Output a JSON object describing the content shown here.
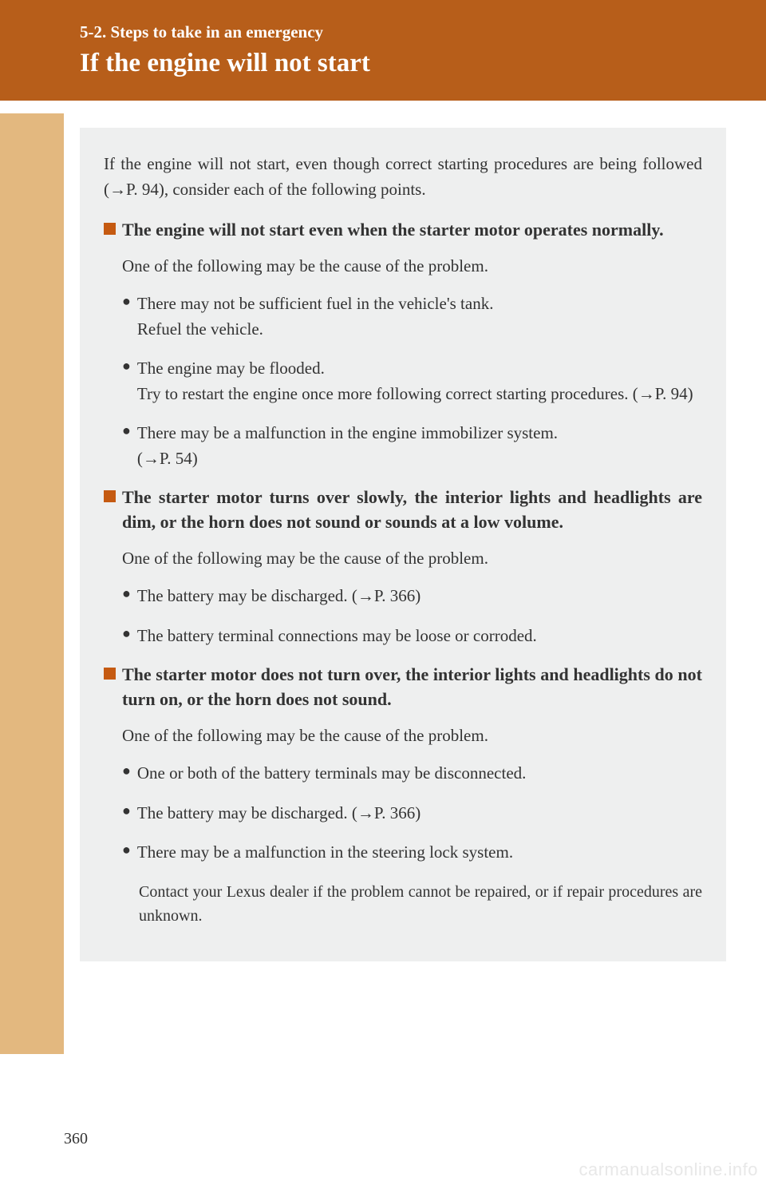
{
  "colors": {
    "header_bg": "#b75e1a",
    "side_band": "#e3b87f",
    "content_bg": "#eeefef",
    "square_bullet": "#c55a11",
    "text": "#333333",
    "page_bg": "#ffffff",
    "watermark": "#e8e8e8"
  },
  "typography": {
    "body_font": "Georgia, serif",
    "section_number_size": 21,
    "title_size": 33,
    "body_size": 21,
    "heading_size": 22
  },
  "header": {
    "section": "5-2. Steps to take in an emergency",
    "title": "If the engine will not start"
  },
  "intro": "If the engine will not start, even though correct starting procedures are being followed (→P. 94), consider each of the following points.",
  "sections": [
    {
      "heading": "The engine will not start even when the starter motor operates normally.",
      "subtext": "One of the following may be the cause of the problem.",
      "bullets": [
        "There may not be sufficient fuel in the vehicle's tank.\nRefuel the vehicle.",
        "The engine may be flooded.\nTry to restart the engine once more following correct starting procedures. (→P. 94)",
        "There may be a malfunction in the engine immobilizer system.\n(→P. 54)"
      ]
    },
    {
      "heading": "The starter motor turns over slowly, the interior lights and headlights are dim, or the horn does not sound or sounds at a low volume.",
      "subtext": "One of the following may be the cause of the problem.",
      "bullets": [
        "The battery may be discharged. (→P. 366)",
        "The battery terminal connections may be loose or corroded."
      ]
    },
    {
      "heading": "The starter motor does not turn over, the interior lights and headlights do not turn on, or the horn does not sound.",
      "subtext": "One of the following may be the cause of the problem.",
      "bullets": [
        "One or both of the battery terminals may be disconnected.",
        "The battery may be discharged. (→P. 366)",
        "There may be a malfunction in the steering lock system."
      ],
      "footer": "Contact your Lexus dealer if the problem cannot be repaired, or if repair procedures are unknown."
    }
  ],
  "page_number": "360",
  "watermark": "carmanualsonline.info"
}
